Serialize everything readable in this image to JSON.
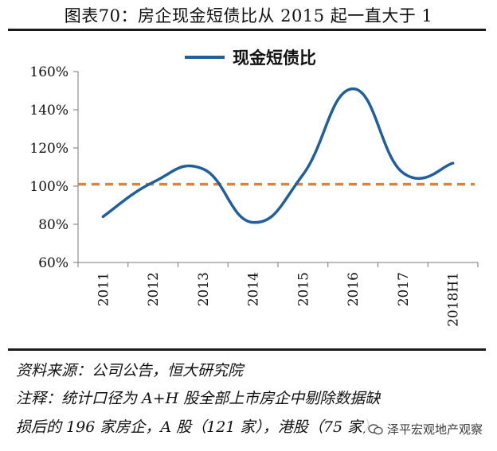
{
  "title": "图表70：房企现金短债比从 2015 起一直大于 1",
  "chart_data": {
    "type": "line",
    "categories": [
      "2011",
      "2012",
      "2013",
      "2014",
      "2015",
      "2016",
      "2017",
      "2018H1"
    ],
    "series": [
      {
        "name": "现金短债比",
        "values": [
          84,
          102,
          109,
          81,
          106,
          151,
          107,
          112
        ],
        "unit": "%"
      }
    ],
    "reference_line": {
      "value": 101,
      "style": "dashed"
    },
    "yticks": [
      "60%",
      "80%",
      "100%",
      "120%",
      "140%",
      "160%"
    ],
    "ylim": [
      60,
      160
    ],
    "legend": "top",
    "colors": {
      "series": "#1f5f9e",
      "reference": "#e08133"
    }
  },
  "footer": {
    "source": "资料来源：公司公告，恒大研究院",
    "note_line1": "注释：统计口径为 A+H 股全部上市房企中剔除数据缺",
    "note_line2": "损后的 196 家房企，A 股（121 家），港股（75 家）"
  },
  "watermark": "泽平宏观地产观察"
}
